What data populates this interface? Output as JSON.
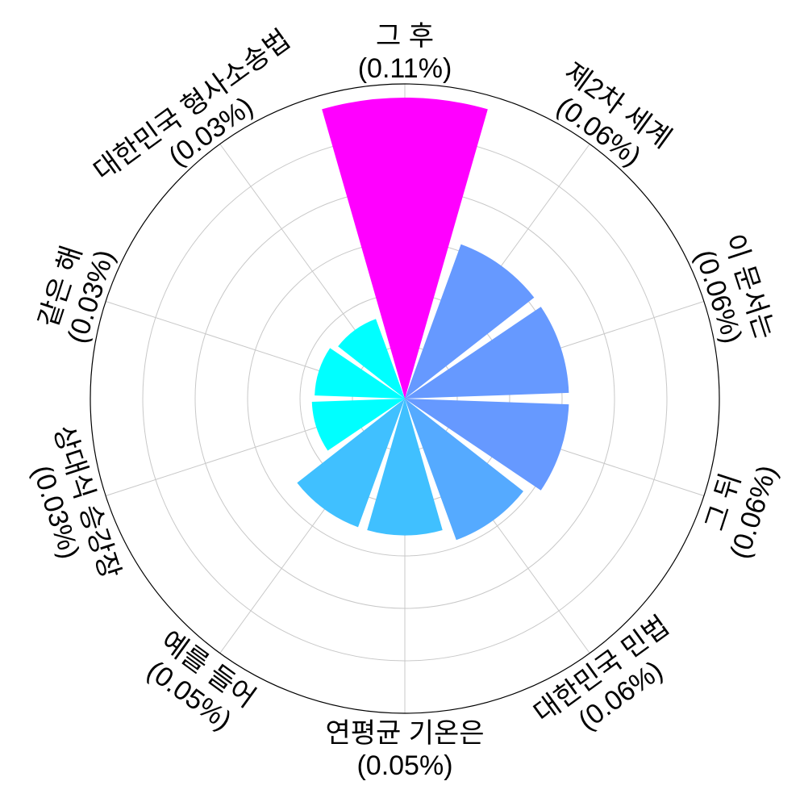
{
  "chart_data": {
    "type": "polar-bar",
    "categories": [
      {
        "name": "그 후",
        "pct_label": "(0.11%)",
        "value": 0.11,
        "color": "#ff00ff"
      },
      {
        "name": "제2차 세계",
        "pct_label": "(0.06%)",
        "value": 0.06,
        "color": "#6699ff"
      },
      {
        "name": "이 문서는",
        "pct_label": "(0.06%)",
        "value": 0.06,
        "color": "#6699ff"
      },
      {
        "name": "그 뒤",
        "pct_label": "(0.06%)",
        "value": 0.06,
        "color": "#6699ff"
      },
      {
        "name": "대한민국 민법",
        "pct_label": "(0.06%)",
        "value": 0.055,
        "color": "#55aaff"
      },
      {
        "name": "연평균 기온은",
        "pct_label": "(0.05%)",
        "value": 0.05,
        "color": "#40c0ff"
      },
      {
        "name": "예를 들어",
        "pct_label": "(0.05%)",
        "value": 0.05,
        "color": "#40c0ff"
      },
      {
        "name": "상대식 승강장",
        "pct_label": "(0.03%)",
        "value": 0.034,
        "color": "#00ffff"
      },
      {
        "name": "같은 해",
        "pct_label": "(0.03%)",
        "value": 0.033,
        "color": "#00ffff"
      },
      {
        "name": "대한민국 형사소송법",
        "pct_label": "(0.03%)",
        "value": 0.031,
        "color": "#00ffff"
      }
    ],
    "r_max": 0.115,
    "grid": true,
    "legend": "none"
  }
}
